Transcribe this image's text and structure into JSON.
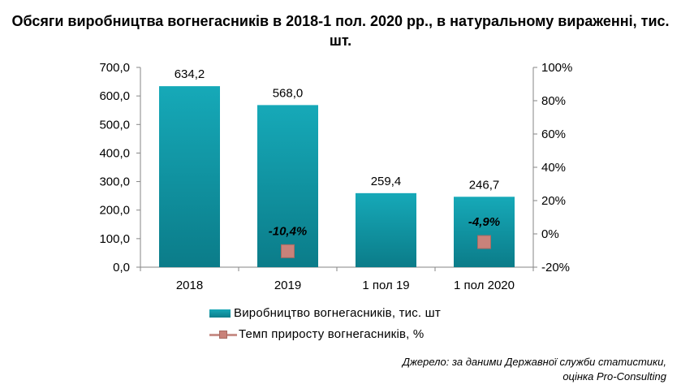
{
  "title": "Обсяги виробництва вогнегасників в 2018-1 пол. 2020 рр., в натуральному вираженні, тис. шт.",
  "source_line1": "Джерело: за даними Державної служби статистики,",
  "source_line2": "оцінка Pro-Consulting",
  "chart_data": {
    "type": "bar",
    "categories": [
      "2018",
      "2019",
      "1 пол 19",
      "1 пол 2020"
    ],
    "series": [
      {
        "name": "Виробництво вогнегасників, тис. шт",
        "type": "bar",
        "axis": "left",
        "values": [
          634.2,
          568.0,
          259.4,
          246.7
        ],
        "labels": [
          "634,2",
          "568,0",
          "259,4",
          "246,7"
        ],
        "color": "#14a3b1"
      },
      {
        "name": "Темп приросту вогнегасників, %",
        "type": "line",
        "axis": "right",
        "values": [
          null,
          -10.4,
          null,
          -4.9
        ],
        "labels": [
          null,
          "-10,4%",
          null,
          "-4,9%"
        ],
        "color": "#c9827a"
      }
    ],
    "y_left": {
      "ylim": [
        0,
        700
      ],
      "ticks": [
        "0,0",
        "100,0",
        "200,0",
        "300,0",
        "400,0",
        "500,0",
        "600,0",
        "700,0"
      ]
    },
    "y_right": {
      "ylim": [
        -20,
        100
      ],
      "ticks": [
        "-20%",
        "0%",
        "20%",
        "40%",
        "60%",
        "80%",
        "100%"
      ]
    },
    "legend_position": "bottom",
    "grid": false
  }
}
